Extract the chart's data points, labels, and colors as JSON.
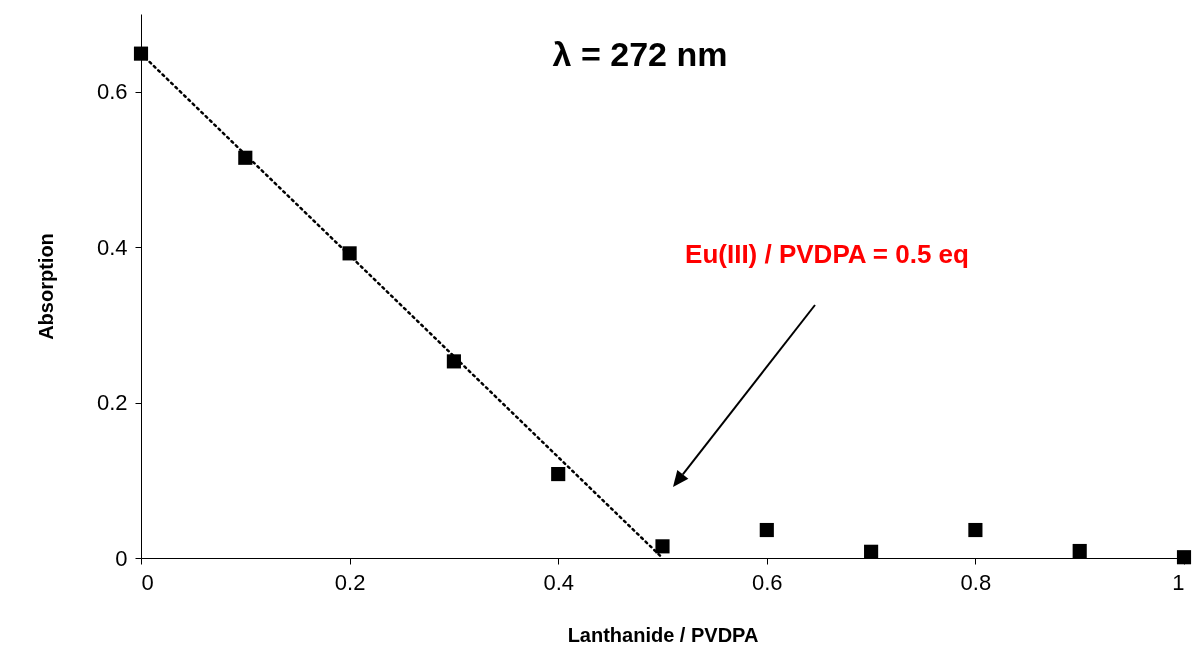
{
  "chart_data": {
    "type": "scatter",
    "title": "λ = 272 nm",
    "xlabel": "Lanthanide / PVDPA",
    "ylabel": "Absorption",
    "series": [
      {
        "color": "#000000",
        "marker": "square",
        "x": [
          0,
          0.1,
          0.2,
          0.3,
          0.4,
          0.5,
          0.6,
          0.7,
          0.8,
          0.9,
          1
        ],
        "values": [
          0.649,
          0.515,
          0.392,
          0.253,
          0.108,
          0.015,
          0.036,
          0.008,
          0.036,
          0.009,
          0.001
        ]
      },
      {
        "type": "line",
        "color": "#000000",
        "line_style": "dotted",
        "marker": "none",
        "x": [
          0,
          0.5
        ],
        "values": [
          0.649,
          0
        ]
      }
    ],
    "xlim": [
      0,
      1
    ],
    "ylim": [
      0,
      0.7
    ],
    "xticks": [
      0,
      0.2,
      0.4,
      0.6,
      0.8,
      1
    ],
    "yticks": [
      0,
      0.2,
      0.4,
      0.6
    ],
    "grid": false,
    "annotations": [
      "Eu(III) / PVDPA = 0.5 eq"
    ]
  }
}
